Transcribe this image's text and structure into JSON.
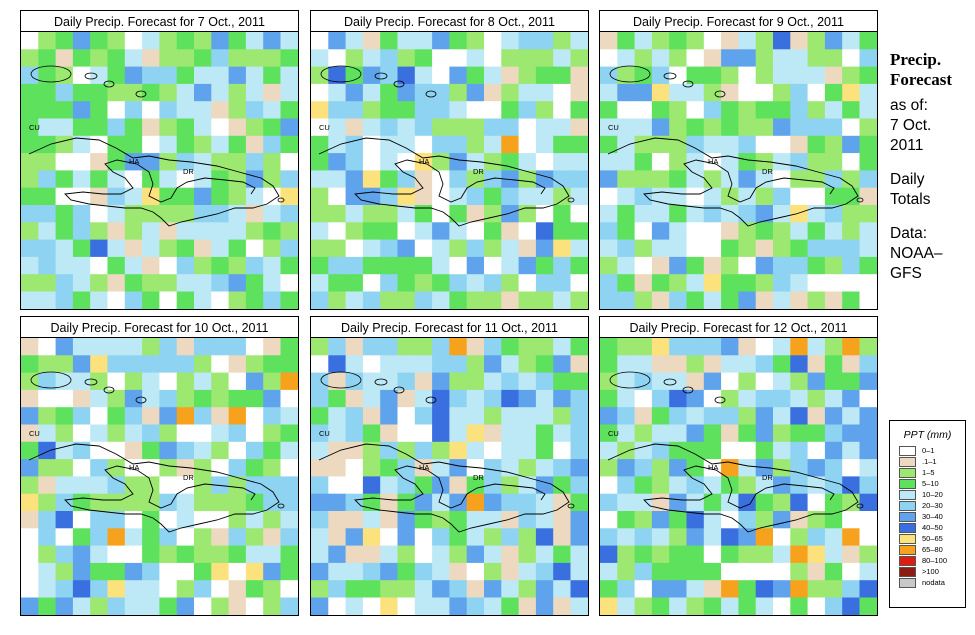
{
  "panels": [
    {
      "title": "Daily Precip. Forecast for  7 Oct., 2011"
    },
    {
      "title": "Daily Precip. Forecast for  8 Oct., 2011"
    },
    {
      "title": "Daily Precip. Forecast for  9 Oct., 2011"
    },
    {
      "title": "Daily Precip. Forecast for  10 Oct., 2011"
    },
    {
      "title": "Daily Precip. Forecast for  11 Oct., 2011"
    },
    {
      "title": "Daily Precip. Forecast for  12 Oct., 2011"
    }
  ],
  "region_labels": {
    "cu": "CU",
    "ha": "HA",
    "dr": "DR"
  },
  "side": {
    "title1": "Precip.",
    "title2": "Forecast",
    "asof": "as of:",
    "date1": "7 Oct.",
    "date2": "2011",
    "daily": "Daily",
    "totals": "Totals",
    "data": "Data:",
    "src1": "NOAA–",
    "src2": "GFS"
  },
  "legend": {
    "title": "PPT (mm)",
    "items": [
      {
        "label": "0–1",
        "color": "#ffffff"
      },
      {
        "label": ".1–1",
        "color": "#ecd9bf"
      },
      {
        "label": "1–5",
        "color": "#9ce870"
      },
      {
        "label": "5–10",
        "color": "#5ee25e"
      },
      {
        "label": "10–20",
        "color": "#bde9f6"
      },
      {
        "label": "20–30",
        "color": "#8ed3f1"
      },
      {
        "label": "30–40",
        "color": "#5fa3ec"
      },
      {
        "label": "40–50",
        "color": "#3a6fe0"
      },
      {
        "label": "50–65",
        "color": "#fbe27c"
      },
      {
        "label": "65–80",
        "color": "#f7a21d"
      },
      {
        "label": "80–100",
        "color": "#de1c12"
      },
      {
        "label": ">100",
        "color": "#8c1d10"
      },
      {
        "label": "nodata",
        "color": "#c8c8c8"
      }
    ]
  }
}
